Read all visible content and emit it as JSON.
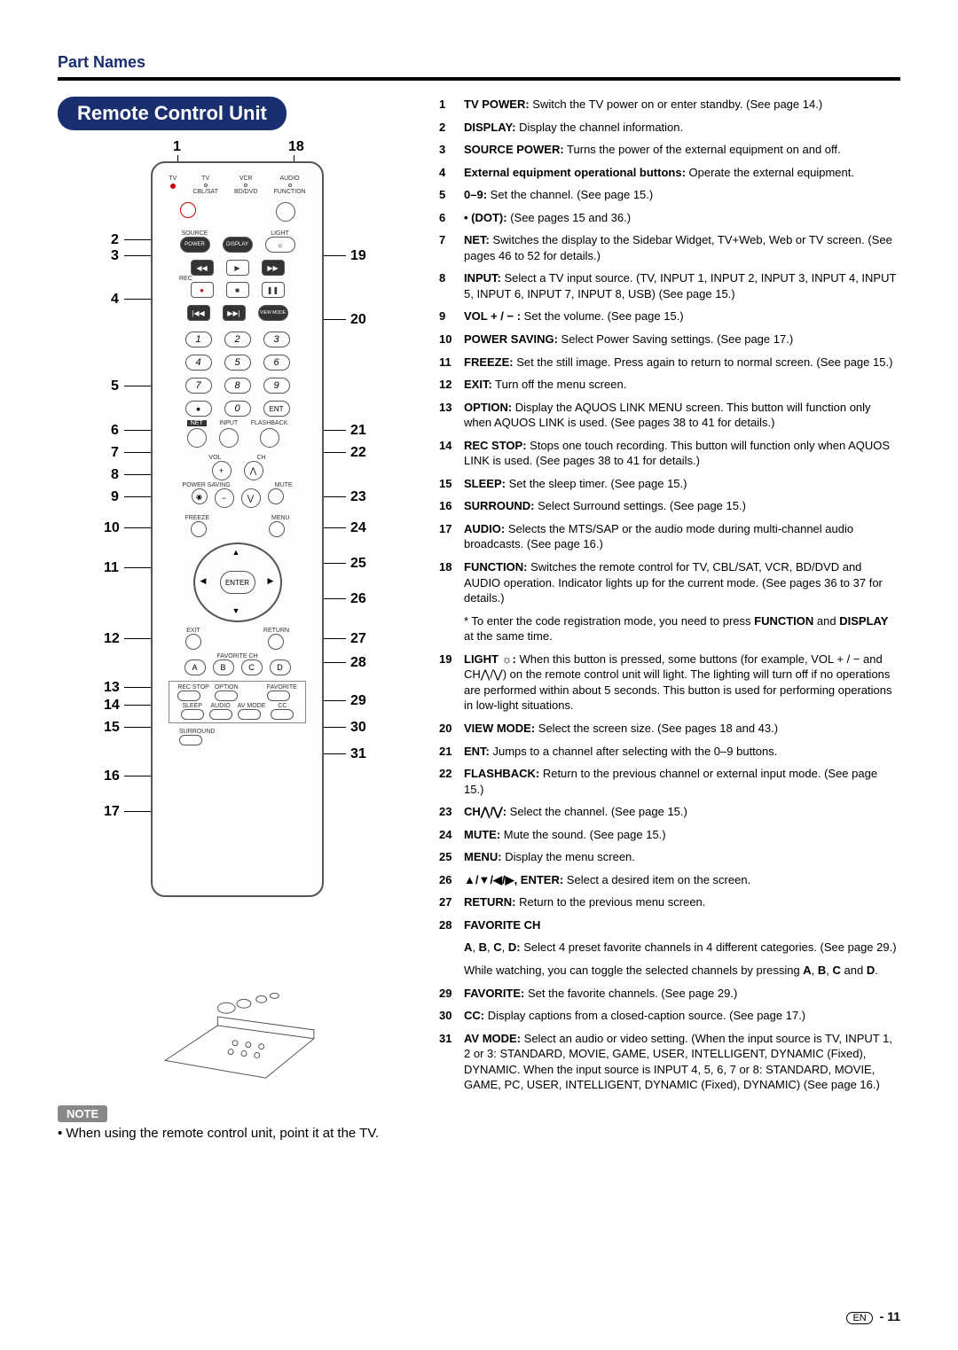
{
  "section_title": "Part Names",
  "pill_header": "Remote Control Unit",
  "top_labels": {
    "n1": "1",
    "n18": "18"
  },
  "left_labels": [
    "2",
    "3",
    "4",
    "5",
    "6",
    "7",
    "8",
    "9",
    "10",
    "11",
    "12",
    "13",
    "14",
    "15",
    "16",
    "17"
  ],
  "right_labels": [
    "19",
    "20",
    "21",
    "22",
    "23",
    "24",
    "25",
    "26",
    "27",
    "28",
    "29",
    "30",
    "31"
  ],
  "remote": {
    "row1_labels": [
      "TV",
      "TV",
      "VCR",
      "AUDIO"
    ],
    "row1b_labels": [
      "",
      "CBL/SAT",
      "BD/DVD",
      "FUNCTION"
    ],
    "power": "POWER",
    "source": "SOURCE",
    "display": "DISPLAY",
    "light": "LIGHT",
    "rec": "REC",
    "view_mode": "VIEW MODE",
    "net": "NET",
    "input": "INPUT",
    "flashback": "FLASHBACK",
    "ent": "ENT",
    "vol": "VOL",
    "ch": "CH",
    "power_saving": "POWER SAVING",
    "mute": "MUTE",
    "freeze": "FREEZE",
    "menu": "MENU",
    "enter": "ENTER",
    "exit": "EXIT",
    "return": "RETURN",
    "favorite_ch": "FAVORITE CH",
    "abcd": [
      "A",
      "B",
      "C",
      "D"
    ],
    "bottom_row1": [
      "REC STOP",
      "OPTION",
      "",
      "FAVORITE"
    ],
    "bottom_row2": [
      "SLEEP",
      "AUDIO",
      "AV MODE",
      "CC"
    ],
    "surround": "SURROUND",
    "numbers": [
      "1",
      "2",
      "3",
      "4",
      "5",
      "6",
      "7",
      "8",
      "9",
      "0"
    ],
    "dot": "•"
  },
  "descriptions": [
    {
      "n": "1",
      "b": "TV POWER:",
      "t": " Switch the TV power on or enter standby. (See page 14.)"
    },
    {
      "n": "2",
      "b": "DISPLAY:",
      "t": " Display the channel information."
    },
    {
      "n": "3",
      "b": "SOURCE POWER:",
      "t": " Turns the power of the external equipment on and off."
    },
    {
      "n": "4",
      "b": "External equipment operational buttons:",
      "t": " Operate the external equipment."
    },
    {
      "n": "5",
      "b": "0–9:",
      "t": " Set the channel. (See page 15.)"
    },
    {
      "n": "6",
      "b": "• (DOT):",
      "t": " (See pages 15 and 36.)"
    },
    {
      "n": "7",
      "b": "NET:",
      "t": " Switches the display to the Sidebar Widget, TV+Web, Web or TV screen. (See pages 46 to 52 for details.)"
    },
    {
      "n": "8",
      "b": "INPUT:",
      "t": " Select a TV input source. (TV, INPUT 1, INPUT 2, INPUT 3, INPUT 4, INPUT 5, INPUT 6, INPUT 7, INPUT 8, USB)  (See page 15.)"
    },
    {
      "n": "9",
      "b": "VOL + / − :",
      "t": " Set the volume. (See page 15.)"
    },
    {
      "n": "10",
      "b": "POWER SAVING:",
      "t": " Select Power Saving settings. (See page 17.)"
    },
    {
      "n": "11",
      "b": "FREEZE:",
      "t": " Set the still image. Press again to return to normal screen. (See page 15.)"
    },
    {
      "n": "12",
      "b": "EXIT:",
      "t": " Turn off the menu screen."
    },
    {
      "n": "13",
      "b": "OPTION:",
      "t": " Display the AQUOS LINK MENU screen. This button will function only when AQUOS LINK is used. (See pages 38 to 41 for details.)"
    },
    {
      "n": "14",
      "b": "REC STOP:",
      "t": " Stops one touch recording. This button will function only when AQUOS LINK is used. (See pages 38 to 41 for details.)"
    },
    {
      "n": "15",
      "b": "SLEEP:",
      "t": " Set the sleep timer. (See page 15.)"
    },
    {
      "n": "16",
      "b": "SURROUND:",
      "t": " Select Surround settings. (See page 15.)"
    },
    {
      "n": "17",
      "b": "AUDIO:",
      "t": " Selects the MTS/SAP or the audio mode during multi-channel audio broadcasts. (See page 16.)"
    },
    {
      "n": "18",
      "b": "FUNCTION:",
      "t": " Switches the remote control for TV, CBL/SAT, VCR, BD/DVD and AUDIO operation. Indicator lights up for the current mode. (See pages 36 to 37 for details.)"
    }
  ],
  "desc18_sub": "* To enter the code registration mode, you need to press FUNCTION and DISPLAY at the same time.",
  "descriptions2": [
    {
      "n": "19",
      "b": "LIGHT ☼:",
      "t": " When this button is pressed, some buttons (for example, VOL + / −  and CH⋀/⋁) on the remote control unit will light. The lighting will turn off if no operations are performed within about 5 seconds. This button is used for performing operations in low-light situations."
    },
    {
      "n": "20",
      "b": "VIEW MODE:",
      "t": " Select the screen size. (See pages 18 and 43.)"
    },
    {
      "n": "21",
      "b": "ENT:",
      "t": " Jumps to a channel after selecting with the 0–9 buttons."
    },
    {
      "n": "22",
      "b": "FLASHBACK:",
      "t": " Return to the previous channel or external input mode. (See page 15.)"
    },
    {
      "n": "23",
      "b": "CH⋀/⋁:",
      "t": " Select the channel. (See page 15.)"
    },
    {
      "n": "24",
      "b": "MUTE:",
      "t": " Mute the sound. (See page 15.)"
    },
    {
      "n": "25",
      "b": "MENU:",
      "t": " Display the menu screen."
    },
    {
      "n": "26",
      "b": "▲/▼/◀/▶, ENTER:",
      "t": " Select a desired item on the screen."
    },
    {
      "n": "27",
      "b": "RETURN:",
      "t": " Return to the previous menu screen."
    },
    {
      "n": "28",
      "b": "FAVORITE CH",
      "t": ""
    }
  ],
  "desc28_sub1": "A, B, C, D: Select 4 preset favorite channels in 4 different categories. (See page 29.)",
  "desc28_sub2": "While watching, you can toggle the selected channels by pressing A, B, C and D.",
  "descriptions3": [
    {
      "n": "29",
      "b": "FAVORITE:",
      "t": " Set the favorite channels. (See page 29.)"
    },
    {
      "n": "30",
      "b": "CC:",
      "t": " Display captions from a closed-caption source. (See page 17.)"
    },
    {
      "n": "31",
      "b": "AV MODE:",
      "t": " Select an audio or video setting.\n(When the input source is TV, INPUT 1, 2 or 3: STANDARD, MOVIE, GAME, USER, INTELLIGENT, DYNAMIC (Fixed), DYNAMIC. When the input source is INPUT 4, 5, 6, 7 or 8: STANDARD, MOVIE, GAME, PC, USER, INTELLIGENT, DYNAMIC (Fixed), DYNAMIC) (See page 16.)"
    }
  ],
  "note_label": "NOTE",
  "note_text": "• When using the remote control unit, point it at the TV.",
  "page_en": "EN",
  "page_num": "- 11"
}
